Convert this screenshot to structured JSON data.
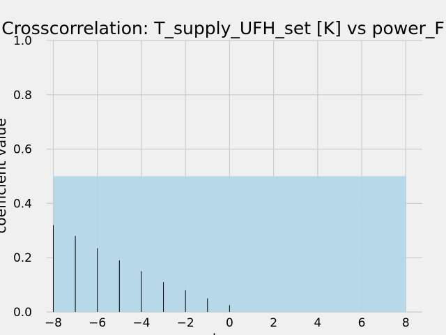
{
  "chart_data": {
    "type": "bar",
    "title": "Crosscorrelation: T_supply_UFH_set [K] vs power_F",
    "xlabel": "lag",
    "ylabel": "coefficient value",
    "xlim": [
      -8.3,
      8.75
    ],
    "ylim": [
      0,
      1.0
    ],
    "x_ticks": [
      "−8",
      "−6",
      "−4",
      "−2",
      "0",
      "2",
      "4",
      "6",
      "8"
    ],
    "x_tick_values": [
      -8,
      -6,
      -4,
      -2,
      0,
      2,
      4,
      6,
      8
    ],
    "y_ticks": [
      "0.0",
      "0.2",
      "0.4",
      "0.6",
      "0.8",
      "1.0"
    ],
    "y_tick_values": [
      0,
      0.2,
      0.4,
      0.6,
      0.8,
      1.0
    ],
    "grid": true,
    "confidence_band": {
      "x_range": [
        -8,
        8
      ],
      "y_range": [
        0,
        0.5
      ],
      "color": "#b3d6e8"
    },
    "bar_color": "#000000",
    "x": [
      -8,
      -7,
      -6,
      -5,
      -4,
      -3,
      -2,
      -1,
      0
    ],
    "values": [
      0.32,
      0.28,
      0.235,
      0.19,
      0.15,
      0.11,
      0.08,
      0.05,
      0.025
    ]
  },
  "colors": {
    "background": "#f0f0f0",
    "grid": "#cbcbcb"
  }
}
